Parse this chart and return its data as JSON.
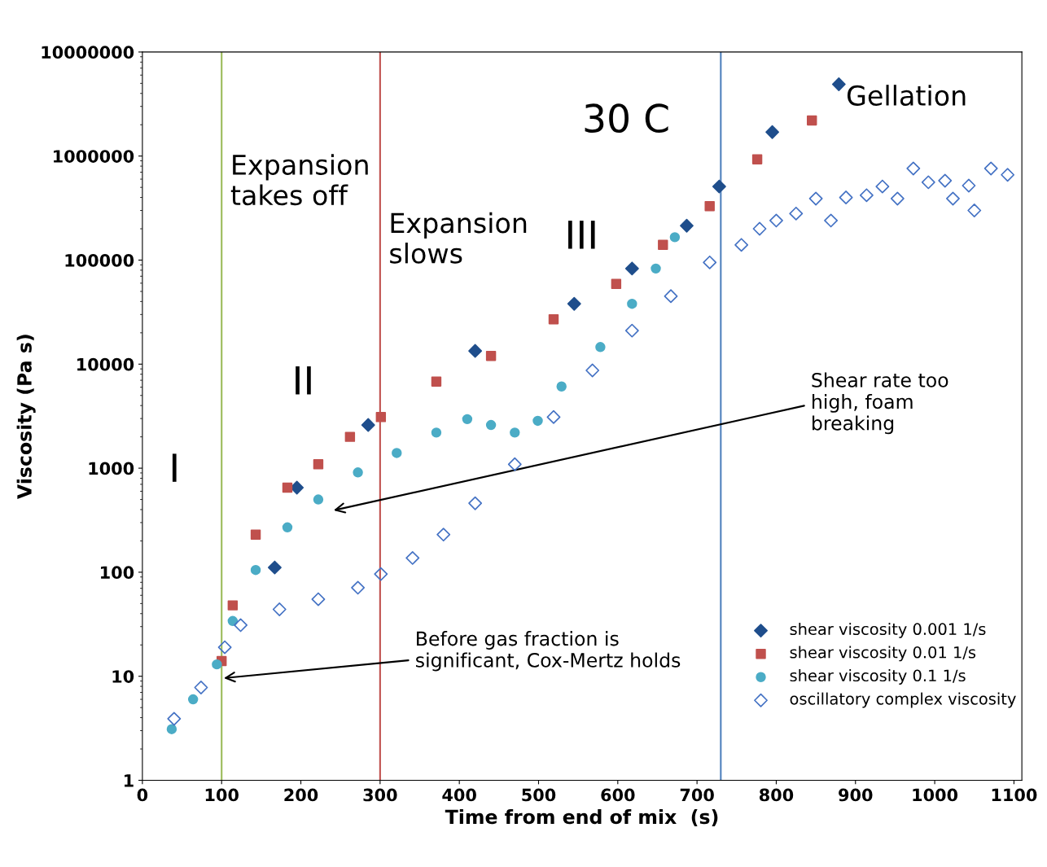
{
  "chart_data": {
    "type": "scatter",
    "xlabel": "Time from end of mix  (s)",
    "ylabel": "Viscosity (Pa s)",
    "log": "y",
    "xlim": [
      0,
      1110
    ],
    "xticks": [
      0,
      100,
      200,
      300,
      400,
      500,
      600,
      700,
      800,
      900,
      1000,
      1100
    ],
    "ylim": [
      1,
      10000000
    ],
    "yticks": [
      1,
      10,
      100,
      1000,
      10000,
      100000,
      1000000,
      10000000
    ],
    "grid": false,
    "legend": "right",
    "series": [
      {
        "name": "shear viscosity 0.001 1/s",
        "color": "#1f4e8c",
        "marker": "diamond",
        "x": [
          167,
          195,
          285,
          420,
          545,
          618,
          687,
          728,
          795,
          879
        ],
        "values": [
          111,
          650,
          2600,
          13400,
          38000,
          83000,
          214000,
          510000,
          1700000,
          4900000
        ]
      },
      {
        "name": "shear viscosity 0.01 1/s",
        "color": "#c0504d",
        "marker": "square",
        "x": [
          100,
          114,
          143,
          183,
          222,
          262,
          301,
          371,
          440,
          519,
          598,
          657,
          716,
          776,
          845
        ],
        "values": [
          14,
          48,
          230,
          650,
          1090,
          2000,
          3100,
          6800,
          12000,
          27000,
          59000,
          140000,
          330000,
          930000,
          2200000
        ]
      },
      {
        "name": "shear viscosity 0.1 1/s",
        "color": "#4bacc6",
        "marker": "circle",
        "x": [
          37,
          64,
          94,
          114,
          143,
          183,
          222,
          272,
          321,
          371,
          410,
          440,
          470,
          499,
          529,
          578,
          618,
          648,
          672
        ],
        "values": [
          3.1,
          6,
          13,
          34,
          105,
          270,
          500,
          910,
          1400,
          2200,
          2960,
          2600,
          2200,
          2850,
          6100,
          14600,
          38000,
          83000,
          166000
        ]
      },
      {
        "name": "oscillatory complex viscosity",
        "color": "#4472c4",
        "marker": "diamond_open",
        "x": [
          40,
          74,
          104,
          124,
          173,
          222,
          272,
          301,
          341,
          380,
          420,
          470,
          519,
          568,
          618,
          667,
          716,
          756,
          779,
          800,
          825,
          850,
          869,
          888,
          914,
          934,
          953,
          973,
          992,
          1013,
          1023,
          1043,
          1050,
          1071,
          1092
        ],
        "values": [
          3.9,
          7.8,
          19,
          31,
          44,
          55,
          71,
          96,
          137,
          230,
          460,
          1090,
          3100,
          8700,
          21000,
          45000,
          95000,
          140000,
          200000,
          240000,
          280000,
          390000,
          240000,
          400000,
          420000,
          510000,
          390000,
          760000,
          560000,
          580000,
          390000,
          520000,
          300000,
          760000,
          660000
        ]
      }
    ],
    "ref_lines": [
      {
        "axis": "x",
        "value": 100,
        "color": "#9bbb59"
      },
      {
        "axis": "x",
        "value": 300,
        "color": "#c0504d"
      },
      {
        "axis": "x",
        "value": 730,
        "color": "#4f81bd"
      }
    ],
    "annotations": [
      "Expansion\ntakes off",
      "Expansion\nslows",
      "30 C",
      "Gellation",
      "I",
      "II",
      "III",
      "Shear rate too\nhigh, foam\nbreaking",
      "Before gas fraction is\nsignificant, Cox-Mertz holds"
    ]
  }
}
